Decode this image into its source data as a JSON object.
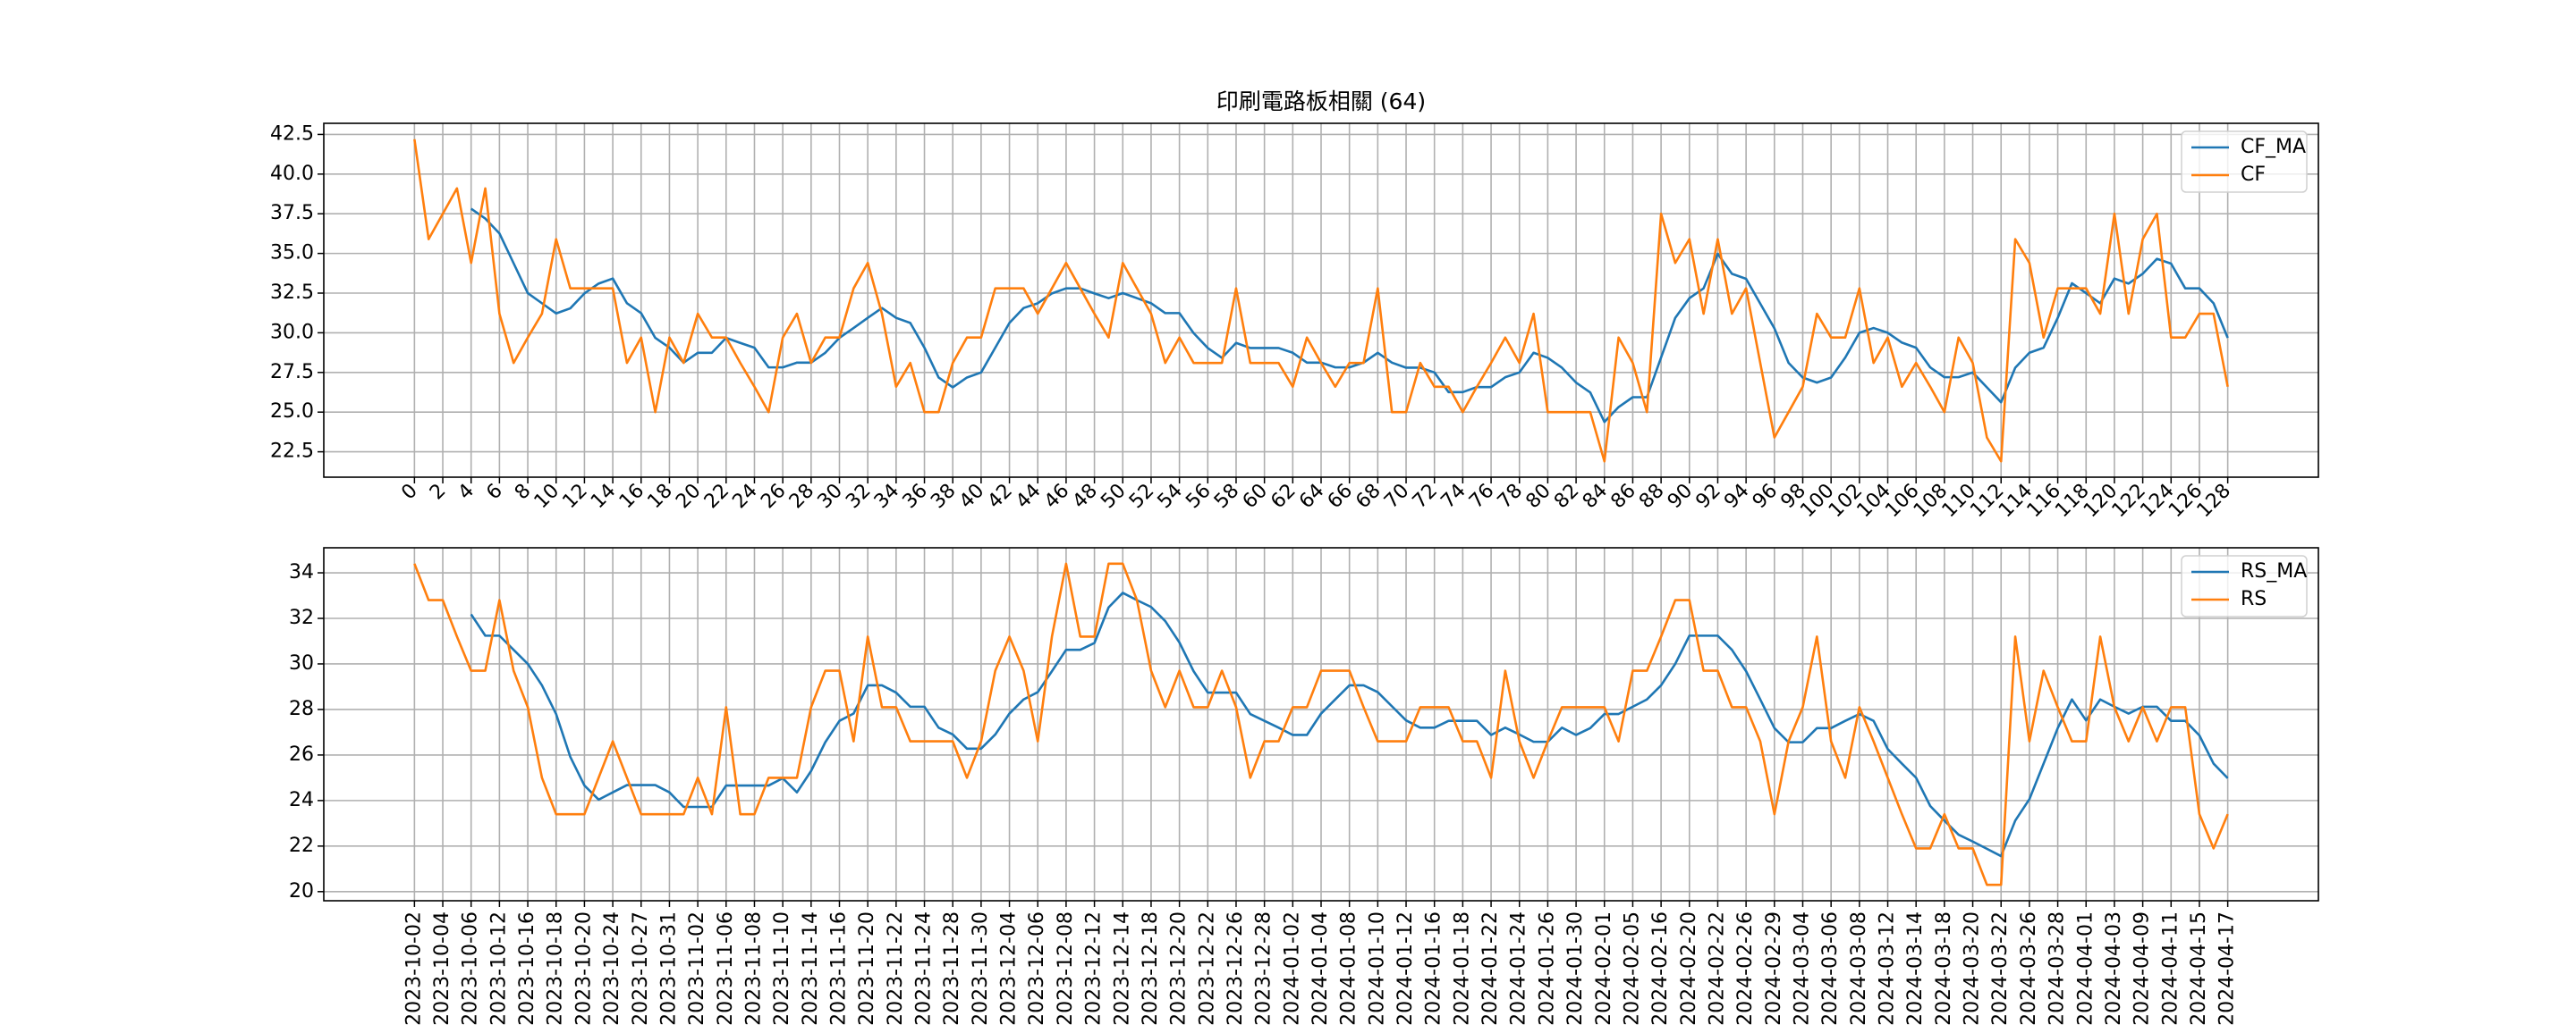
{
  "chart_data": [
    {
      "type": "line",
      "title": "印刷電路板相關 (64)",
      "x": [
        0,
        1,
        2,
        3,
        4,
        5,
        6,
        7,
        8,
        9,
        10,
        11,
        12,
        13,
        14,
        15,
        16,
        17,
        18,
        19,
        20,
        21,
        22,
        23,
        24,
        25,
        26,
        27,
        28,
        29,
        30,
        31,
        32,
        33,
        34,
        35,
        36,
        37,
        38,
        39,
        40,
        41,
        42,
        43,
        44,
        45,
        46,
        47,
        48,
        49,
        50,
        51,
        52,
        53,
        54,
        55,
        56,
        57,
        58,
        59,
        60,
        61,
        62,
        63,
        64,
        65,
        66,
        67,
        68,
        69,
        70,
        71,
        72,
        73,
        74,
        75,
        76,
        77,
        78,
        79,
        80,
        81,
        82,
        83,
        84,
        85,
        86,
        87,
        88,
        89,
        90,
        91,
        92,
        93,
        94,
        95,
        96,
        97,
        98,
        99,
        100,
        101,
        102,
        103,
        104,
        105,
        106,
        107,
        108,
        109,
        110,
        111,
        112,
        113,
        114,
        115,
        116,
        117,
        118,
        119,
        120,
        121,
        122,
        123,
        124,
        125,
        126,
        127,
        128
      ],
      "xlim": [
        -6.4,
        134.4
      ],
      "xticks": [
        0,
        2,
        4,
        6,
        8,
        10,
        12,
        14,
        16,
        18,
        20,
        22,
        24,
        26,
        28,
        30,
        32,
        34,
        36,
        38,
        40,
        42,
        44,
        46,
        48,
        50,
        52,
        54,
        56,
        58,
        60,
        62,
        64,
        66,
        68,
        70,
        72,
        74,
        76,
        78,
        80,
        82,
        84,
        86,
        88,
        90,
        92,
        94,
        96,
        98,
        100,
        102,
        104,
        106,
        108,
        110,
        112,
        114,
        116,
        118,
        120,
        122,
        124,
        126,
        128
      ],
      "ylim": [
        20.9,
        43.2
      ],
      "yticks": [
        22.5,
        {
          "value": 25,
          "label": "25.0"
        },
        27.5,
        {
          "value": 30,
          "label": "30.0"
        },
        32.5,
        {
          "value": 35,
          "label": "35.0"
        },
        37.5,
        {
          "value": 40,
          "label": "40.0"
        },
        42.5
      ],
      "grid": true,
      "legend": "upper right",
      "series": [
        {
          "name": "CF_MA",
          "color": "#1f77b4",
          "values": [
            null,
            null,
            null,
            null,
            37.82,
            37.2,
            36.26,
            34.38,
            32.5,
            31.86,
            31.22,
            31.54,
            32.48,
            33.1,
            33.42,
            31.86,
            31.24,
            29.68,
            29.06,
            28.12,
            28.74,
            28.74,
            29.68,
            29.36,
            29.06,
            27.82,
            27.82,
            28.12,
            28.12,
            28.74,
            29.68,
            30.3,
            30.94,
            31.56,
            30.94,
            30.62,
            29.06,
            27.18,
            26.56,
            27.18,
            27.5,
            29.06,
            30.62,
            31.56,
            31.86,
            32.48,
            32.8,
            32.8,
            32.48,
            32.18,
            32.5,
            32.18,
            31.86,
            31.24,
            31.24,
            29.98,
            29.04,
            28.42,
            29.36,
            29.04,
            29.04,
            29.04,
            28.74,
            28.12,
            28.12,
            27.82,
            27.82,
            28.12,
            28.74,
            28.12,
            27.8,
            27.8,
            27.5,
            26.26,
            26.26,
            26.58,
            26.58,
            27.2,
            27.5,
            28.74,
            28.42,
            27.8,
            26.86,
            26.24,
            24.38,
            25.32,
            25.94,
            25.94,
            28.44,
            30.94,
            32.18,
            32.8,
            34.98,
            33.72,
            33.4,
            31.84,
            30.28,
            28.1,
            27.18,
            26.86,
            27.18,
            28.44,
            30.0,
            30.3,
            30.0,
            29.38,
            29.06,
            27.82,
            27.2,
            27.2,
            27.5,
            26.56,
            25.62,
            27.8,
            28.74,
            29.06,
            30.94,
            33.12,
            32.5,
            31.86,
            33.42,
            33.1,
            33.72,
            34.66,
            34.36,
            32.8,
            32.8,
            31.86,
            29.68
          ]
        },
        {
          "name": "CF",
          "color": "#ff7f0e",
          "values": [
            42.2,
            35.9,
            37.5,
            39.1,
            34.4,
            39.1,
            31.2,
            28.1,
            29.7,
            31.2,
            35.9,
            32.8,
            32.8,
            32.8,
            32.8,
            28.1,
            29.7,
            25.0,
            29.7,
            28.1,
            31.2,
            29.7,
            29.7,
            28.1,
            26.6,
            25.0,
            29.7,
            31.2,
            28.1,
            29.7,
            29.7,
            32.8,
            34.4,
            31.2,
            26.6,
            28.1,
            25.0,
            25.0,
            28.1,
            29.7,
            29.7,
            32.8,
            32.8,
            32.8,
            31.2,
            32.8,
            34.4,
            32.8,
            31.2,
            29.7,
            34.4,
            32.8,
            31.2,
            28.1,
            29.7,
            28.1,
            28.1,
            28.1,
            32.8,
            28.1,
            28.1,
            28.1,
            26.6,
            29.7,
            28.1,
            26.6,
            28.1,
            28.1,
            32.8,
            25.0,
            25.0,
            28.1,
            26.6,
            26.6,
            25.0,
            26.6,
            28.1,
            29.7,
            28.1,
            31.2,
            25.0,
            25.0,
            25.0,
            25.0,
            21.9,
            29.7,
            28.1,
            25.0,
            37.5,
            34.4,
            35.9,
            31.2,
            35.9,
            31.2,
            32.8,
            28.1,
            23.4,
            25.0,
            26.6,
            31.2,
            29.7,
            29.7,
            32.8,
            28.1,
            29.7,
            26.6,
            28.1,
            26.6,
            25.0,
            29.7,
            28.1,
            23.4,
            21.9,
            35.9,
            34.4,
            29.7,
            32.8,
            32.8,
            32.8,
            31.2,
            37.5,
            31.2,
            35.9,
            37.5,
            29.7,
            29.7,
            31.2,
            31.2,
            26.6
          ]
        }
      ]
    },
    {
      "type": "line",
      "categories": [
        "2023-10-02",
        null,
        "2023-10-04",
        null,
        "2023-10-06",
        null,
        "2023-10-12",
        null,
        "2023-10-16",
        null,
        "2023-10-18",
        null,
        "2023-10-20",
        null,
        "2023-10-24",
        null,
        "2023-10-27",
        null,
        "2023-10-31",
        null,
        "2023-11-02",
        null,
        "2023-11-06",
        null,
        "2023-11-08",
        null,
        "2023-11-10",
        null,
        "2023-11-14",
        null,
        "2023-11-16",
        null,
        "2023-11-20",
        null,
        "2023-11-22",
        null,
        "2023-11-24",
        null,
        "2023-11-28",
        null,
        "2023-11-30",
        null,
        "2023-12-04",
        null,
        "2023-12-06",
        null,
        "2023-12-08",
        null,
        "2023-12-12",
        null,
        "2023-12-14",
        null,
        "2023-12-18",
        null,
        "2023-12-20",
        null,
        "2023-12-22",
        null,
        "2023-12-26",
        null,
        "2023-12-28",
        null,
        "2024-01-02",
        null,
        "2024-01-04",
        null,
        "2024-01-08",
        null,
        "2024-01-10",
        null,
        "2024-01-12",
        null,
        "2024-01-16",
        null,
        "2024-01-18",
        null,
        "2024-01-22",
        null,
        "2024-01-24",
        null,
        "2024-01-26",
        null,
        "2024-01-30",
        null,
        "2024-02-01",
        null,
        "2024-02-05",
        null,
        "2024-02-16",
        null,
        "2024-02-20",
        null,
        "2024-02-22",
        null,
        "2024-02-26",
        null,
        "2024-02-29",
        null,
        "2024-03-04",
        null,
        "2024-03-06",
        null,
        "2024-03-08",
        null,
        "2024-03-12",
        null,
        "2024-03-14",
        null,
        "2024-03-18",
        null,
        "2024-03-20",
        null,
        "2024-03-22",
        null,
        "2024-03-26",
        null,
        "2024-03-28",
        null,
        "2024-04-01",
        null,
        "2024-04-03",
        null,
        "2024-04-09",
        null,
        "2024-04-11",
        null,
        "2024-04-15",
        null,
        "2024-04-17"
      ],
      "ylim": [
        19.6,
        35.1
      ],
      "yticks": [
        20,
        22,
        24,
        26,
        28,
        30,
        32,
        34
      ],
      "grid": true,
      "legend": "upper right",
      "series": [
        {
          "name": "RS_MA",
          "color": "#1f77b4",
          "values": [
            null,
            null,
            null,
            null,
            32.18,
            31.24,
            31.24,
            30.62,
            30.0,
            29.06,
            27.8,
            25.92,
            24.66,
            24.04,
            24.36,
            24.68,
            24.68,
            24.68,
            24.36,
            23.72,
            23.72,
            23.72,
            24.66,
            24.66,
            24.66,
            24.66,
            24.98,
            24.36,
            25.3,
            26.56,
            27.5,
            27.82,
            29.06,
            29.06,
            28.74,
            28.12,
            28.12,
            27.2,
            26.9,
            26.28,
            26.28,
            26.9,
            27.82,
            28.44,
            28.76,
            29.68,
            30.62,
            30.62,
            30.92,
            32.48,
            33.12,
            32.8,
            32.5,
            31.88,
            30.94,
            29.68,
            28.74,
            28.74,
            28.74,
            27.8,
            27.5,
            27.2,
            26.88,
            26.88,
            27.82,
            28.44,
            29.06,
            29.06,
            28.76,
            28.14,
            27.52,
            27.2,
            27.2,
            27.5,
            27.5,
            27.5,
            26.88,
            27.2,
            26.9,
            26.58,
            26.58,
            27.2,
            26.88,
            27.18,
            27.8,
            27.8,
            28.12,
            28.44,
            29.06,
            30.0,
            31.24,
            31.24,
            31.24,
            30.62,
            29.68,
            28.44,
            27.18,
            26.56,
            26.56,
            27.18,
            27.18,
            27.5,
            27.8,
            27.5,
            26.26,
            25.62,
            25.0,
            23.76,
            23.12,
            22.5,
            22.2,
            21.88,
            21.56,
            23.12,
            24.06,
            25.62,
            27.18,
            28.44,
            27.52,
            28.44,
            28.12,
            27.82,
            28.12,
            28.12,
            27.5,
            27.5,
            26.86,
            25.62,
            24.98
          ]
        },
        {
          "name": "RS",
          "color": "#ff7f0e",
          "values": [
            34.4,
            32.8,
            32.8,
            31.2,
            29.7,
            29.7,
            32.8,
            29.7,
            28.1,
            25.0,
            23.4,
            23.4,
            23.4,
            25.0,
            26.6,
            25.0,
            23.4,
            23.4,
            23.4,
            23.4,
            25.0,
            23.4,
            28.1,
            23.4,
            23.4,
            25.0,
            25.0,
            25.0,
            28.1,
            29.7,
            29.7,
            26.6,
            31.2,
            28.1,
            28.1,
            26.6,
            26.6,
            26.6,
            26.6,
            25.0,
            26.6,
            29.7,
            31.2,
            29.7,
            26.6,
            31.2,
            34.4,
            31.2,
            31.2,
            34.4,
            34.4,
            32.8,
            29.7,
            28.1,
            29.7,
            28.1,
            28.1,
            29.7,
            28.1,
            25.0,
            26.6,
            26.6,
            28.1,
            28.1,
            29.7,
            29.7,
            29.7,
            28.1,
            26.6,
            26.6,
            26.6,
            28.1,
            28.1,
            28.1,
            26.6,
            26.6,
            25.0,
            29.7,
            26.6,
            25.0,
            26.6,
            28.1,
            28.1,
            28.1,
            28.1,
            26.6,
            29.7,
            29.7,
            31.2,
            32.8,
            32.8,
            29.7,
            29.7,
            28.1,
            28.1,
            26.6,
            23.4,
            26.6,
            28.1,
            31.2,
            26.6,
            25.0,
            28.1,
            26.6,
            25.0,
            23.4,
            21.9,
            21.9,
            23.4,
            21.9,
            21.9,
            20.3,
            20.3,
            31.2,
            26.6,
            29.7,
            28.1,
            26.6,
            26.6,
            31.2,
            28.1,
            26.6,
            28.1,
            26.6,
            28.1,
            28.1,
            23.4,
            21.9,
            23.4
          ]
        }
      ]
    }
  ]
}
